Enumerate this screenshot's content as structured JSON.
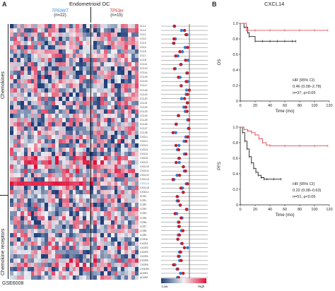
{
  "panelA": {
    "letter": "A",
    "title": "Endometrioid OC",
    "groups": [
      {
        "label": "TP53WT",
        "count": "(n=22)",
        "color": "#2f7fd3"
      },
      {
        "label": "TP53m",
        "count": "(n=15)",
        "color": "#d0242b"
      }
    ],
    "section_chemokines": "Chemokines",
    "section_receptors": "Chemokine receptors",
    "dataset": "GSE6008",
    "genes": [
      "XCL1",
      "XCL2",
      "CCL1",
      "CCL2",
      "CCL3",
      "CCL4",
      "CCL5",
      "CCL7",
      "CCL8",
      "CCL11",
      "CCL13",
      "CCL14",
      "CCL15",
      "CCL16",
      "CCL17",
      "CCL18",
      "CCL19",
      "CCL20",
      "CCL21",
      "CCL22",
      "CCL23",
      "CCL24",
      "CCL25",
      "CCL26",
      "CCL27",
      "CCL28",
      "CXCL1",
      "CXCL2",
      "CXCL3",
      "CXCL5",
      "CXCL6",
      "CXCL8",
      "CXCL9",
      "CXCL10",
      "CXCL11",
      "CXCL12",
      "CXCL13",
      "CXCL14",
      "CXCL16",
      "CX3CL1",
      "XCR1",
      "CCR1",
      "CCR2",
      "CCR3",
      "CCR4",
      "CCR5",
      "CCR6",
      "CCR7",
      "CCR8",
      "CCR9",
      "CCR10",
      "CXCR1",
      "CXCR2",
      "CXCR3",
      "CXCR4",
      "CXCR5",
      "CXCR6",
      "CX3CR1",
      "ACKR1",
      "ACKR2"
    ],
    "highlight_gene": "CXCL14",
    "legend_low": "Low",
    "legend_high": "High",
    "colors": {
      "low": "#1f3f7a",
      "mid": "#f2f2f2",
      "high": "#e0113a",
      "wt_dot": "#2f7fd3",
      "mut_dot": "#c81a2a"
    }
  },
  "panelB": {
    "letter": "B",
    "title": "CXCL14",
    "os": {
      "ylabel": "OS",
      "xlabel": "Time (mo)",
      "yticks": [
        "0",
        "0.2",
        "0.4",
        "0.6",
        "0.8",
        "1.0"
      ],
      "xticks": [
        "0",
        "20",
        "40",
        "60",
        "80",
        "100",
        "120"
      ],
      "hr_label": "HR (95% CI)",
      "hr_value": "0.46 (0.08–2.78)",
      "stats": "n=37, p>0.05"
    },
    "pfs": {
      "ylabel": "PFS",
      "xlabel": "Time (mo)",
      "yticks": [
        "0",
        "0.2",
        "0.4",
        "0.6",
        "0.8",
        "1.0"
      ],
      "xticks": [
        "0",
        "20",
        "40",
        "60",
        "80",
        "100",
        "120"
      ],
      "hr_label": "HR (95% CI)",
      "hr_value": "0.22 (0.08–0.63)",
      "stats": "n=51, p<0.05"
    },
    "colors": {
      "low": "#222222",
      "high": "#e0505a"
    }
  },
  "chart_data": [
    {
      "type": "line",
      "title": "OS",
      "xlabel": "Time (mo)",
      "ylabel": "OS",
      "xlim": [
        0,
        120
      ],
      "ylim": [
        0,
        1.0
      ],
      "series": [
        {
          "x": [
            0,
            5,
            10,
            12,
            20,
            30,
            40,
            50,
            60,
            70,
            75
          ],
          "values": [
            1.0,
            0.95,
            0.88,
            0.83,
            0.77,
            0.77,
            0.77,
            0.77,
            0.77,
            0.77,
            0.77
          ]
        },
        {
          "x": [
            0,
            8,
            20,
            40,
            60,
            80,
            100,
            118
          ],
          "values": [
            1.0,
            0.91,
            0.91,
            0.91,
            0.91,
            0.91,
            0.91,
            0.91
          ]
        }
      ]
    },
    {
      "type": "line",
      "title": "PFS",
      "xlabel": "Time (mo)",
      "ylabel": "PFS",
      "xlim": [
        0,
        120
      ],
      "ylim": [
        0,
        1.0
      ],
      "series": [
        {
          "x": [
            0,
            3,
            6,
            9,
            12,
            15,
            18,
            21,
            24,
            28,
            32,
            36,
            45,
            55
          ],
          "values": [
            1.0,
            0.93,
            0.82,
            0.72,
            0.62,
            0.54,
            0.47,
            0.42,
            0.38,
            0.35,
            0.33,
            0.33,
            0.33,
            0.33
          ]
        },
        {
          "x": [
            0,
            5,
            10,
            15,
            20,
            25,
            30,
            35,
            40,
            60,
            80,
            100,
            118
          ],
          "values": [
            1.0,
            0.97,
            0.95,
            0.93,
            0.9,
            0.85,
            0.8,
            0.77,
            0.76,
            0.76,
            0.76,
            0.76,
            0.76
          ]
        }
      ]
    }
  ]
}
